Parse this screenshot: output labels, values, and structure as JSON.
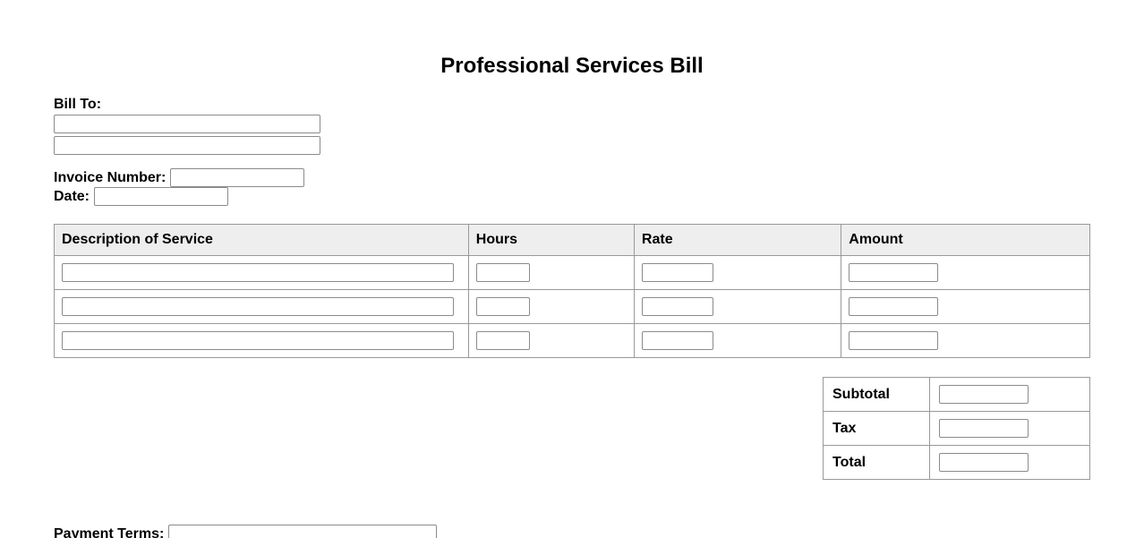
{
  "page": {
    "title": "Professional Services Bill"
  },
  "bill_to": {
    "label": "Bill To:",
    "line1_value": "",
    "line2_value": ""
  },
  "invoice": {
    "number_label": "Invoice Number:",
    "number_value": "",
    "date_label": "Date:",
    "date_value": ""
  },
  "services_table": {
    "headers": [
      "Description of Service",
      "Hours",
      "Rate",
      "Amount"
    ],
    "rows": [
      {
        "description": "",
        "hours": "",
        "rate": "",
        "amount": ""
      },
      {
        "description": "",
        "hours": "",
        "rate": "",
        "amount": ""
      },
      {
        "description": "",
        "hours": "",
        "rate": "",
        "amount": ""
      }
    ]
  },
  "summary": {
    "rows": [
      {
        "label": "Subtotal",
        "value": ""
      },
      {
        "label": "Tax",
        "value": ""
      },
      {
        "label": "Total",
        "value": ""
      }
    ]
  },
  "payment_terms": {
    "label": "Payment Terms:",
    "value": ""
  },
  "colors": {
    "table_header_bg": "#eeeeee",
    "table_border": "#999999",
    "input_border": "#8b8b8b",
    "text": "#000000",
    "background": "#ffffff"
  }
}
